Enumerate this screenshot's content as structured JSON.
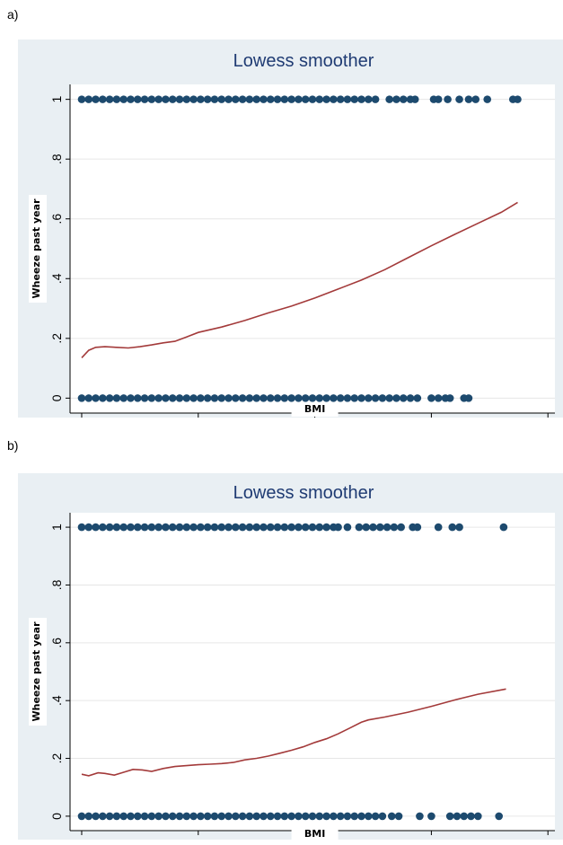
{
  "panels": [
    {
      "label": "a)"
    },
    {
      "label": "b)"
    }
  ],
  "colors": {
    "background": "#e9eff3",
    "plot_area": "#ffffff",
    "points": "#1d4a6e",
    "smoother": "#a33a3a",
    "title": "#1f3b73"
  },
  "chart_data": [
    {
      "type": "scatter",
      "title": "Lowess smoother",
      "xlabel": "BMI",
      "ylabel": "Wheeze past year",
      "xlim": [
        14.5,
        35.3
      ],
      "ylim": [
        -0.05,
        1.05
      ],
      "xticks": [
        15,
        20,
        25,
        30,
        35
      ],
      "yticks": [
        0,
        0.2,
        0.4,
        0.6,
        0.8,
        1
      ],
      "ytick_labels": [
        "0",
        ".2",
        ".4",
        ".6",
        ".8",
        "1"
      ],
      "grid": "horizontal",
      "series": [
        {
          "kind": "points",
          "y": 1,
          "x": [
            15.0,
            15.3,
            15.6,
            15.9,
            16.2,
            16.5,
            16.8,
            17.1,
            17.4,
            17.7,
            18.0,
            18.3,
            18.6,
            18.9,
            19.2,
            19.5,
            19.8,
            20.1,
            20.4,
            20.7,
            21.0,
            21.3,
            21.6,
            21.9,
            22.2,
            22.5,
            22.8,
            23.1,
            23.4,
            23.7,
            24.0,
            24.3,
            24.6,
            24.9,
            25.2,
            25.5,
            25.8,
            26.1,
            26.4,
            26.7,
            27.0,
            27.3,
            27.6,
            28.2,
            28.5,
            28.8,
            29.1,
            29.3,
            30.1,
            30.3,
            30.7,
            31.2,
            31.6,
            31.9,
            32.4,
            33.5,
            33.7
          ]
        },
        {
          "kind": "points",
          "y": 0,
          "x": [
            15.0,
            15.3,
            15.6,
            15.9,
            16.2,
            16.5,
            16.8,
            17.1,
            17.4,
            17.7,
            18.0,
            18.3,
            18.6,
            18.9,
            19.2,
            19.5,
            19.8,
            20.1,
            20.4,
            20.7,
            21.0,
            21.3,
            21.6,
            21.9,
            22.2,
            22.5,
            22.8,
            23.1,
            23.4,
            23.7,
            24.0,
            24.3,
            24.6,
            24.9,
            25.2,
            25.5,
            25.8,
            26.1,
            26.4,
            26.7,
            27.0,
            27.3,
            27.6,
            27.9,
            28.2,
            28.5,
            28.8,
            29.1,
            29.4,
            30.0,
            30.3,
            30.6,
            30.8,
            31.4,
            31.6
          ]
        },
        {
          "kind": "line",
          "x": [
            15.0,
            15.3,
            15.6,
            16.0,
            16.5,
            17.0,
            17.5,
            18.0,
            18.5,
            19.0,
            19.5,
            20.0,
            21.0,
            22.0,
            23.0,
            24.0,
            25.0,
            26.0,
            27.0,
            28.0,
            29.0,
            30.0,
            31.0,
            32.0,
            33.0,
            33.7
          ],
          "y": [
            0.135,
            0.16,
            0.17,
            0.172,
            0.17,
            0.168,
            0.172,
            0.178,
            0.185,
            0.19,
            0.205,
            0.22,
            0.238,
            0.26,
            0.285,
            0.308,
            0.335,
            0.365,
            0.395,
            0.43,
            0.47,
            0.51,
            0.548,
            0.585,
            0.622,
            0.655
          ]
        }
      ]
    },
    {
      "type": "scatter",
      "title": "Lowess smoother",
      "xlabel": "BMI",
      "ylabel": "Wheeze past year",
      "xlim": [
        14.5,
        35.3
      ],
      "ylim": [
        -0.05,
        1.05
      ],
      "xticks": [
        15,
        20,
        25,
        30,
        35
      ],
      "yticks": [
        0,
        0.2,
        0.4,
        0.6,
        0.8,
        1
      ],
      "ytick_labels": [
        "0",
        ".2",
        ".4",
        ".6",
        ".8",
        "1"
      ],
      "grid": "horizontal",
      "series": [
        {
          "kind": "points",
          "y": 1,
          "x": [
            15.0,
            15.3,
            15.6,
            15.9,
            16.2,
            16.5,
            16.8,
            17.1,
            17.4,
            17.7,
            18.0,
            18.3,
            18.6,
            18.9,
            19.2,
            19.5,
            19.8,
            20.1,
            20.4,
            20.7,
            21.0,
            21.3,
            21.6,
            21.9,
            22.2,
            22.5,
            22.8,
            23.1,
            23.4,
            23.7,
            24.0,
            24.3,
            24.6,
            24.9,
            25.2,
            25.5,
            25.8,
            26.0,
            26.4,
            26.9,
            27.2,
            27.5,
            27.8,
            28.1,
            28.4,
            28.7,
            29.2,
            29.4,
            30.3,
            30.9,
            31.2,
            33.1
          ]
        },
        {
          "kind": "points",
          "y": 0,
          "x": [
            15.0,
            15.3,
            15.6,
            15.9,
            16.2,
            16.5,
            16.8,
            17.1,
            17.4,
            17.7,
            18.0,
            18.3,
            18.6,
            18.9,
            19.2,
            19.5,
            19.8,
            20.1,
            20.4,
            20.7,
            21.0,
            21.3,
            21.6,
            21.9,
            22.2,
            22.5,
            22.8,
            23.1,
            23.4,
            23.7,
            24.0,
            24.3,
            24.6,
            24.9,
            25.2,
            25.5,
            25.8,
            26.1,
            26.4,
            26.7,
            27.0,
            27.3,
            27.6,
            27.9,
            28.3,
            28.6,
            29.5,
            30.0,
            30.8,
            31.1,
            31.4,
            31.7,
            32.0,
            32.9
          ]
        },
        {
          "kind": "line",
          "x": [
            15.0,
            15.3,
            15.7,
            16.0,
            16.4,
            16.8,
            17.2,
            17.6,
            18.0,
            18.5,
            19.0,
            19.5,
            20.0,
            20.5,
            21.0,
            21.5,
            22.0,
            22.5,
            23.0,
            23.5,
            24.0,
            24.5,
            25.0,
            25.5,
            26.0,
            26.5,
            27.0,
            27.3,
            28.0,
            29.0,
            30.0,
            31.0,
            32.0,
            33.2
          ],
          "y": [
            0.145,
            0.14,
            0.15,
            0.148,
            0.142,
            0.152,
            0.162,
            0.16,
            0.155,
            0.165,
            0.172,
            0.175,
            0.178,
            0.18,
            0.182,
            0.186,
            0.195,
            0.2,
            0.208,
            0.218,
            0.228,
            0.24,
            0.255,
            0.268,
            0.285,
            0.305,
            0.325,
            0.333,
            0.343,
            0.36,
            0.38,
            0.402,
            0.422,
            0.44
          ]
        }
      ]
    }
  ]
}
